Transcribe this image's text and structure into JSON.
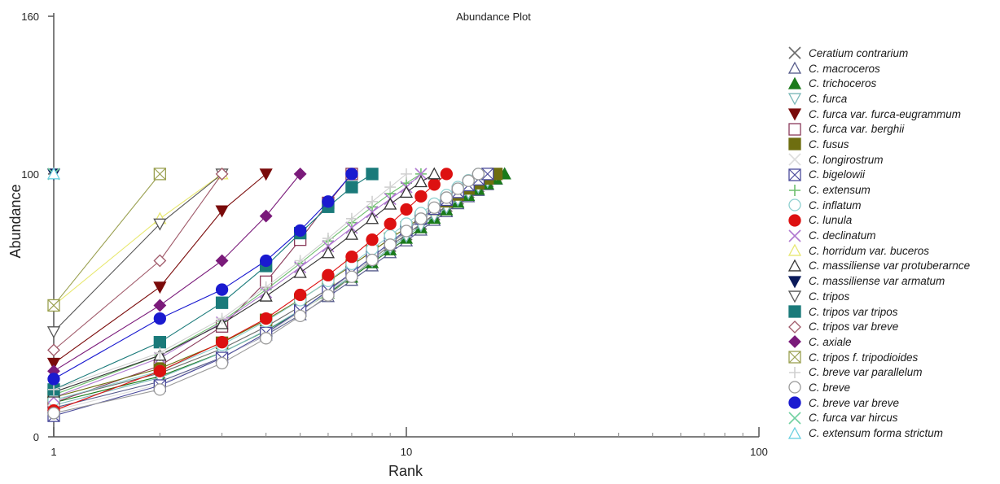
{
  "chart_data": {
    "type": "line",
    "title": "Abundance Plot",
    "xlabel": "Rank",
    "ylabel": "Abundance",
    "x_scale": "log",
    "xlim": [
      1,
      100
    ],
    "ylim": [
      0,
      160
    ],
    "x_ticks": [
      "1",
      "10",
      "100"
    ],
    "y_ticks": [
      "0",
      "100",
      "160"
    ],
    "grid": false,
    "legend_position": "right",
    "series": [
      {
        "name": "Ceratium contrarium",
        "color": "#6b6b6b",
        "marker": "x",
        "fill": false,
        "values": [
          14,
          24.2,
          33.5,
          41.9,
          49.6,
          56.2,
          62.2,
          67.7,
          72.6,
          77,
          81,
          84.6,
          87.8,
          90.6,
          93.1,
          95.3,
          97.3,
          100
        ]
      },
      {
        "name": "C. macroceros",
        "color": "#555a8a",
        "marker": "triangle-up",
        "fill": false,
        "values": [
          11,
          21,
          30.2,
          38.7,
          46.4,
          53.3,
          59.5,
          65,
          70,
          74.5,
          78.6,
          82.3,
          85.6,
          88.6,
          91.3,
          93.7,
          95.9,
          98,
          100
        ]
      },
      {
        "name": "C. trichoceros",
        "color": "#1a7a1a",
        "marker": "triangle-up",
        "fill": true,
        "values": [
          13,
          23,
          32.1,
          40.3,
          47.8,
          54.6,
          60.7,
          66.2,
          71.1,
          75.5,
          79.5,
          83.1,
          86.3,
          89.2,
          91.8,
          94.1,
          96.2,
          98.1,
          100
        ]
      },
      {
        "name": "C. furca",
        "color": "#7ab8b8",
        "marker": "triangle-down",
        "fill": false,
        "values": [
          12,
          22.5,
          32,
          40.5,
          48.2,
          55,
          61.2,
          66.8,
          71.8,
          76.3,
          80.3,
          84,
          87.2,
          90.1,
          92.7,
          95,
          97.1,
          100
        ]
      },
      {
        "name": "C. furca var. furca-eugrammum",
        "color": "#7a0a0a",
        "marker": "triangle-down",
        "fill": true,
        "values": [
          28,
          57,
          86,
          100
        ]
      },
      {
        "name": "C. furca var. berghii",
        "color": "#8a3a5a",
        "marker": "square",
        "fill": false,
        "values": [
          13,
          27,
          42,
          59,
          75,
          89,
          100
        ]
      },
      {
        "name": "C. fusus",
        "color": "#6e6e10",
        "marker": "square",
        "fill": true,
        "values": [
          15,
          26,
          35.8,
          44.5,
          52.2,
          59.1,
          65.2,
          70.6,
          75.4,
          79.6,
          83.4,
          86.7,
          89.6,
          92.2,
          94.5,
          96.5,
          98.3,
          100
        ]
      },
      {
        "name": "C. longirostrum",
        "color": "#dddddd",
        "marker": "x",
        "fill": false,
        "values": [
          10,
          20,
          30,
          39,
          47.5,
          55,
          62,
          68,
          73.5,
          78.5,
          83,
          87,
          90.5,
          93.5,
          96.3,
          98.3,
          100
        ]
      },
      {
        "name": "C. bigelowii",
        "color": "#4a4a9a",
        "marker": "square-x",
        "fill": false,
        "values": [
          8,
          19.5,
          30,
          39.5,
          48,
          55.6,
          62.4,
          68.5,
          73.9,
          78.7,
          83,
          86.8,
          90.2,
          93.2,
          95.8,
          98,
          100
        ]
      },
      {
        "name": "C. extensum",
        "color": "#6fbf6f",
        "marker": "plus",
        "fill": false,
        "values": [
          16,
          31,
          44,
          56,
          66,
          74.5,
          81.5,
          87.5,
          92.5,
          96.5,
          100
        ]
      },
      {
        "name": "C. inflatum",
        "color": "#8fd0d0",
        "marker": "circle",
        "fill": false,
        "values": [
          14,
          25,
          35,
          44,
          52,
          59.3,
          65.8,
          71.5,
          76.6,
          81.1,
          85.1,
          88.7,
          92,
          95,
          97.6,
          100
        ]
      },
      {
        "name": "C. lunula",
        "color": "#dd1111",
        "marker": "circle",
        "fill": true,
        "values": [
          10,
          25,
          36,
          45,
          54,
          61.5,
          68.5,
          75,
          81,
          86.5,
          91.5,
          96,
          100
        ]
      },
      {
        "name": "C. declinatum",
        "color": "#b07ad0",
        "marker": "x",
        "fill": false,
        "values": [
          15,
          30,
          43.5,
          55,
          64.5,
          72.5,
          79.5,
          85.5,
          90.5,
          95,
          100
        ]
      },
      {
        "name": "C. horridum var. buceros",
        "color": "#e8e870",
        "marker": "triangle-up",
        "fill": false,
        "values": [
          50,
          83,
          100
        ]
      },
      {
        "name": "C. massiliense var protuberarnce",
        "color": "#333333",
        "marker": "triangle-up",
        "fill": false,
        "values": [
          17,
          31,
          43,
          53.5,
          62.5,
          70,
          77,
          83,
          88.5,
          93,
          97,
          100
        ]
      },
      {
        "name": "C. massiliense var armatum",
        "color": "#0a1a5a",
        "marker": "triangle-down",
        "fill": true,
        "values": [
          100
        ]
      },
      {
        "name": "C. tripos",
        "color": "#555555",
        "marker": "triangle-down",
        "fill": false,
        "values": [
          40,
          81,
          100
        ]
      },
      {
        "name": "C. tripos var tripos",
        "color": "#1a7a7a",
        "marker": "square",
        "fill": true,
        "values": [
          18,
          36,
          51,
          65,
          77.5,
          87.5,
          95,
          100
        ]
      },
      {
        "name": "C. tripos var breve",
        "color": "#a05a6a",
        "marker": "diamond",
        "fill": false,
        "values": [
          33,
          67,
          100
        ]
      },
      {
        "name": "C. axiale",
        "color": "#7a1a7a",
        "marker": "diamond",
        "fill": true,
        "values": [
          25,
          50,
          67,
          84,
          100
        ]
      },
      {
        "name": "C. tripos f. tripodioides",
        "color": "#9aa050",
        "marker": "square-x",
        "fill": false,
        "values": [
          50,
          100
        ]
      },
      {
        "name": "C. breve var parallelum",
        "color": "#d0d0d0",
        "marker": "plus",
        "fill": false,
        "values": [
          18,
          32,
          45,
          57,
          67,
          75.5,
          83,
          89.5,
          95,
          100
        ]
      },
      {
        "name": "C. breve",
        "color": "#9a9a9a",
        "marker": "circle",
        "fill": false,
        "values": [
          9,
          18,
          28,
          37.5,
          46,
          53.8,
          60.9,
          67.3,
          73.1,
          78.3,
          83,
          87.2,
          91,
          94.4,
          97.4,
          100
        ]
      },
      {
        "name": "C. breve var breve",
        "color": "#1a1ad0",
        "marker": "circle",
        "fill": true,
        "values": [
          22,
          45,
          56,
          67,
          78.5,
          89.5,
          100
        ]
      },
      {
        "name": "C. furca var hircus",
        "color": "#70d0a0",
        "marker": "x",
        "fill": false,
        "values": [
          100
        ]
      },
      {
        "name": "C. extensum forma strictum",
        "color": "#6ad0e0",
        "marker": "triangle-up",
        "fill": false,
        "values": [
          100
        ]
      }
    ]
  }
}
